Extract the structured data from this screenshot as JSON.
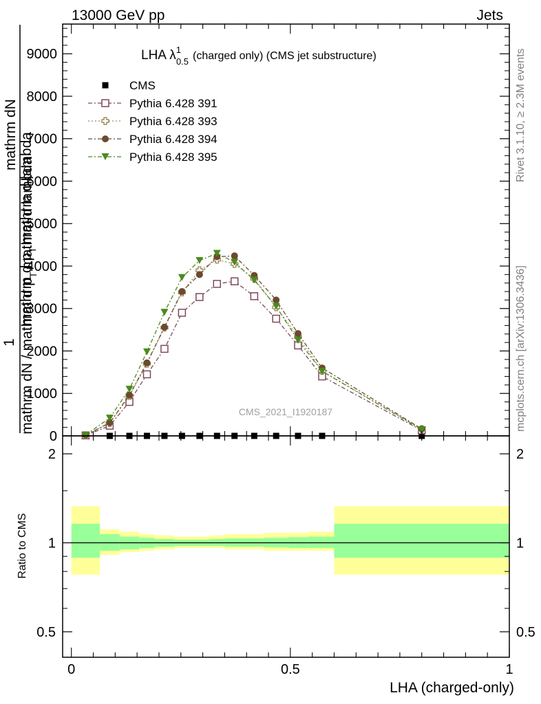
{
  "header": {
    "left": "13000 GeV pp",
    "right": "Jets"
  },
  "side_labels": {
    "rivet": "Rivet 3.1.10, ≥ 2.3M events",
    "mcplots": "mcplots.cern.ch [arXiv:1306.3436]"
  },
  "watermark": "CMS_2021_I1920187",
  "chart_data": [
    {
      "type": "scatter",
      "title_main": "LHA λ",
      "title_sup": "1",
      "title_sub": "0.5",
      "title_rest": "(charged only) (CMS jet substructure)",
      "ylabel_parts": [
        "1",
        "mathrm dN / mathrm d p",
        "T",
        "mathrm d lambda"
      ],
      "ylabel_top_parts": [
        "mathrm d",
        "N",
        "mathrm d p",
        "T",
        "mathrm d lambda"
      ],
      "ylabel_top": "mathrm dN",
      "ylim": [
        0,
        9700
      ],
      "xlim": [
        -0.02,
        1.0
      ],
      "yticks": [
        0,
        1000,
        2000,
        3000,
        4000,
        5000,
        6000,
        7000,
        8000,
        9000
      ],
      "ytick_labels": [
        "0",
        "1000",
        "2000",
        "3000",
        "4000",
        "5000",
        "6000",
        "7000",
        "8000",
        "9000"
      ],
      "series": [
        {
          "name": "CMS",
          "color": "#000000",
          "marker": "square-filled",
          "x": [
            0.0325,
            0.0875,
            0.1325,
            0.1725,
            0.2125,
            0.2525,
            0.2925,
            0.3325,
            0.3725,
            0.4175,
            0.4675,
            0.5175,
            0.5725,
            0.8
          ],
          "y": [
            0,
            0,
            0,
            0,
            0,
            0,
            0,
            0,
            0,
            0,
            0,
            0,
            0,
            0
          ]
        },
        {
          "name": "Pythia 6.428 391",
          "color": "#7b4a5a",
          "marker": "square-open",
          "dash": "6,3,2,3",
          "x": [
            0.0325,
            0.0875,
            0.1325,
            0.1725,
            0.2125,
            0.2525,
            0.2925,
            0.3325,
            0.3725,
            0.4175,
            0.4675,
            0.5175,
            0.5725,
            0.8
          ],
          "y": [
            10,
            240,
            800,
            1450,
            2050,
            2900,
            3270,
            3580,
            3640,
            3290,
            2760,
            2130,
            1400,
            130
          ]
        },
        {
          "name": "Pythia 6.428 393",
          "color": "#9b8c5a",
          "marker": "cross-open",
          "dash": "2,3",
          "x": [
            0.0325,
            0.0875,
            0.1325,
            0.1725,
            0.2125,
            0.2525,
            0.2925,
            0.3325,
            0.3725,
            0.4175,
            0.4675,
            0.5175,
            0.5725,
            0.8
          ],
          "y": [
            15,
            300,
            940,
            1700,
            2550,
            3380,
            3900,
            4150,
            4050,
            3700,
            3030,
            2330,
            1530,
            155
          ]
        },
        {
          "name": "Pythia 6.428 394",
          "color": "#6b4a2f",
          "marker": "circle-filled",
          "dash": "6,3,2,3",
          "x": [
            0.0325,
            0.0875,
            0.1325,
            0.1725,
            0.2125,
            0.2525,
            0.2925,
            0.3325,
            0.3725,
            0.4175,
            0.4675,
            0.5175,
            0.5725,
            0.8
          ],
          "y": [
            18,
            310,
            960,
            1720,
            2560,
            3400,
            3800,
            4220,
            4240,
            3780,
            3200,
            2410,
            1600,
            165
          ]
        },
        {
          "name": "Pythia 6.428 395",
          "color": "#4b8a1e",
          "marker": "triangle-down-filled",
          "dash": "6,3,2,3",
          "x": [
            0.0325,
            0.0875,
            0.1325,
            0.1725,
            0.2125,
            0.2525,
            0.2925,
            0.3325,
            0.3725,
            0.4175,
            0.4675,
            0.5175,
            0.5725,
            0.8
          ],
          "y": [
            25,
            420,
            1100,
            1980,
            2910,
            3730,
            4130,
            4300,
            4090,
            3670,
            3050,
            2250,
            1520,
            145
          ]
        }
      ]
    },
    {
      "type": "ratio",
      "ylabel": "Ratio to CMS",
      "xlabel": "LHA (charged-only)",
      "ylim": [
        0.41,
        2.3
      ],
      "log_y": true,
      "yticks": [
        0.5,
        1,
        2
      ],
      "ytick_labels": [
        "0.5",
        "1",
        "2"
      ],
      "xticks": [
        0,
        0.5,
        1
      ],
      "xtick_labels": [
        "0",
        "0.5",
        "1"
      ],
      "bins": [
        0.0,
        0.065,
        0.11,
        0.155,
        0.19,
        0.235,
        0.27,
        0.315,
        0.35,
        0.395,
        0.44,
        0.495,
        0.54,
        0.6,
        1.0
      ],
      "band_outer": {
        "color": "#ffff99",
        "lo": [
          0.78,
          0.91,
          0.93,
          0.94,
          0.95,
          0.96,
          0.96,
          0.96,
          0.95,
          0.95,
          0.94,
          0.94,
          0.94,
          0.78
        ],
        "hi": [
          1.33,
          1.11,
          1.09,
          1.07,
          1.06,
          1.05,
          1.05,
          1.06,
          1.07,
          1.07,
          1.08,
          1.08,
          1.09,
          1.33
        ]
      },
      "band_inner": {
        "color": "#99ff99",
        "lo": [
          0.89,
          0.94,
          0.95,
          0.96,
          0.97,
          0.975,
          0.975,
          0.975,
          0.97,
          0.97,
          0.965,
          0.96,
          0.96,
          0.89
        ],
        "hi": [
          1.16,
          1.07,
          1.05,
          1.04,
          1.03,
          1.025,
          1.025,
          1.03,
          1.035,
          1.035,
          1.04,
          1.045,
          1.05,
          1.16
        ]
      }
    }
  ]
}
